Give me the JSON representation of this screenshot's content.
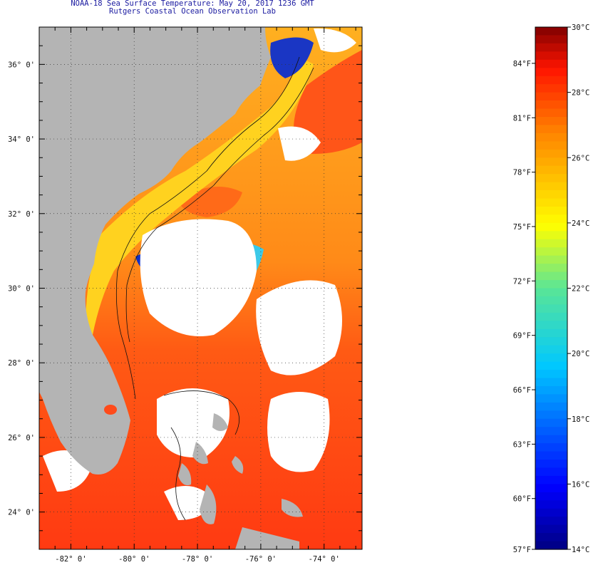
{
  "header": {
    "title_line1": "NOAA-18 Sea Surface Temperature:  May 20, 2017 1236 GMT",
    "title_line2": "Rutgers Coastal Ocean Observation Lab"
  },
  "map": {
    "lat_labels": [
      "36° 0'",
      "34° 0'",
      "32° 0'",
      "30° 0'",
      "28° 0'",
      "26° 0'",
      "24° 0'"
    ],
    "lon_labels": [
      "-82° 0'",
      "-80° 0'",
      "-78° 0'",
      "-76° 0'",
      "-74° 0'"
    ],
    "lat_range": [
      23.0,
      37.0
    ],
    "lon_range": [
      -83.0,
      -72.8
    ],
    "colors": {
      "land": "#b4b4b4",
      "cloud": "#ffffff",
      "warm_water": "#ff4a1a",
      "mid_water": "#ffb21f",
      "cool_water": "#24d6ee",
      "cold_water": "#0a22c8"
    }
  },
  "colorbar": {
    "min_c": 14,
    "max_c": 30,
    "c_labels": [
      "30°C",
      "28°C",
      "26°C",
      "24°C",
      "22°C",
      "20°C",
      "18°C",
      "16°C",
      "14°C"
    ],
    "f_labels": [
      "84°F",
      "81°F",
      "78°F",
      "75°F",
      "72°F",
      "69°F",
      "66°F",
      "63°F",
      "60°F",
      "57°F"
    ]
  }
}
